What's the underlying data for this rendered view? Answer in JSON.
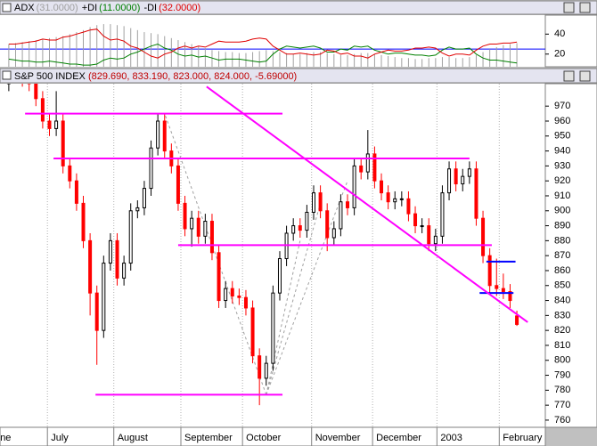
{
  "chart_data": [
    {
      "type": "indicator",
      "title_parts": [
        {
          "name": "ADX",
          "value_label": "(31.0000)"
        },
        {
          "name": "+DI",
          "value_label": "(11.0000)"
        },
        {
          "name": "-DI",
          "value_label": "(32.0000)"
        }
      ],
      "series": [
        {
          "name": "ADX",
          "color": "#a0a0a0",
          "style": "histogram",
          "values": [
            30,
            31,
            32,
            33,
            34,
            35,
            36,
            37,
            38,
            40,
            42,
            44,
            47,
            49,
            50,
            50,
            49,
            48,
            46,
            44,
            42,
            41,
            40,
            38,
            36,
            34,
            32,
            30,
            28,
            26,
            24,
            23,
            22,
            22,
            21,
            21,
            22,
            23,
            24,
            23,
            22,
            21,
            20,
            20,
            21,
            22,
            22,
            21,
            20,
            19,
            19,
            20,
            21,
            21,
            20,
            19,
            18,
            17,
            16,
            16,
            15,
            15,
            16,
            16,
            17,
            17,
            16,
            16,
            17,
            19,
            22,
            25,
            27,
            29,
            30,
            31
          ]
        },
        {
          "name": "+DI",
          "color": "#008000",
          "style": "line",
          "values": [
            15,
            14,
            13,
            13,
            12,
            12,
            13,
            12,
            11,
            10,
            10,
            9,
            9,
            10,
            14,
            16,
            15,
            16,
            20,
            22,
            25,
            28,
            30,
            26,
            24,
            20,
            18,
            19,
            17,
            18,
            16,
            14,
            15,
            15,
            15,
            14,
            13,
            12,
            13,
            20,
            25,
            28,
            27,
            26,
            27,
            28,
            26,
            22,
            22,
            25,
            24,
            28,
            27,
            28,
            24,
            22,
            20,
            21,
            21,
            20,
            19,
            19,
            18,
            19,
            24,
            27,
            25,
            25,
            26,
            20,
            16,
            14,
            14,
            13,
            12,
            11
          ]
        },
        {
          "name": "-DI",
          "color": "#e00000",
          "style": "line",
          "values": [
            30,
            30,
            31,
            32,
            33,
            35,
            34,
            34,
            37,
            38,
            40,
            42,
            44,
            45,
            38,
            34,
            35,
            33,
            28,
            26,
            22,
            18,
            16,
            20,
            22,
            26,
            28,
            26,
            28,
            27,
            30,
            33,
            32,
            32,
            32,
            33,
            35,
            36,
            35,
            28,
            24,
            20,
            20,
            21,
            20,
            19,
            20,
            24,
            23,
            20,
            21,
            18,
            18,
            16,
            20,
            22,
            24,
            23,
            23,
            24,
            26,
            26,
            27,
            26,
            21,
            18,
            20,
            20,
            19,
            24,
            28,
            30,
            30,
            31,
            31,
            32
          ]
        }
      ],
      "hline": {
        "value": 25,
        "color": "#0000ff"
      },
      "xlim": [
        -1.3,
        79.2
      ],
      "ylim": [
        7.3,
        59
      ],
      "yticks": [
        20,
        40
      ]
    },
    {
      "type": "candlestick",
      "title": "S&P 500 INDEX",
      "quote_label": "(829.690, 833.190, 823.000, 824.000, -5.69000)",
      "up_color": "#000000",
      "down_color": "#ff0000",
      "open": [
        985,
        990,
        992,
        988,
        985,
        975,
        960,
        955,
        960,
        930,
        920,
        905,
        880,
        845,
        820,
        865,
        880,
        855,
        865,
        900,
        902,
        915,
        942,
        960,
        940,
        930,
        905,
        888,
        895,
        883,
        893,
        872,
        840,
        848,
        843,
        842,
        835,
        803,
        788,
        798,
        845,
        868,
        885,
        890,
        887,
        899,
        912,
        900,
        882,
        888,
        906,
        902,
        930,
        926,
        938,
        920,
        912,
        906,
        908,
        908,
        898,
        890,
        890,
        878,
        883,
        912,
        928,
        918,
        923,
        928,
        895,
        870,
        850,
        848,
        846,
        829.69
      ],
      "high": [
        995,
        997,
        997,
        993,
        990,
        980,
        965,
        980,
        965,
        935,
        925,
        910,
        885,
        850,
        870,
        885,
        885,
        870,
        905,
        907,
        920,
        947,
        965,
        965,
        945,
        935,
        910,
        900,
        900,
        898,
        898,
        877,
        853,
        853,
        848,
        847,
        840,
        808,
        803,
        850,
        873,
        890,
        895,
        895,
        904,
        917,
        917,
        905,
        893,
        911,
        911,
        935,
        935,
        954,
        943,
        925,
        917,
        913,
        913,
        913,
        903,
        895,
        895,
        888,
        917,
        933,
        933,
        928,
        933,
        933,
        900,
        875,
        868,
        858,
        851,
        833.19
      ],
      "low": [
        980,
        985,
        983,
        980,
        970,
        955,
        950,
        950,
        925,
        915,
        900,
        875,
        830,
        797,
        815,
        860,
        850,
        850,
        860,
        895,
        897,
        910,
        937,
        935,
        925,
        900,
        883,
        876,
        878,
        878,
        867,
        835,
        835,
        838,
        837,
        830,
        798,
        770,
        783,
        793,
        840,
        863,
        880,
        882,
        882,
        894,
        895,
        873,
        877,
        883,
        897,
        897,
        921,
        921,
        915,
        907,
        901,
        901,
        903,
        893,
        885,
        885,
        873,
        873,
        878,
        907,
        913,
        913,
        918,
        890,
        865,
        845,
        843,
        841,
        835,
        823
      ],
      "close": [
        990,
        992,
        988,
        985,
        975,
        960,
        955,
        960,
        930,
        920,
        905,
        880,
        845,
        820,
        865,
        880,
        855,
        865,
        900,
        902,
        915,
        942,
        960,
        940,
        930,
        905,
        888,
        895,
        883,
        893,
        872,
        840,
        848,
        843,
        842,
        835,
        803,
        788,
        798,
        845,
        868,
        885,
        890,
        887,
        899,
        912,
        900,
        882,
        888,
        906,
        902,
        930,
        926,
        938,
        920,
        912,
        906,
        908,
        908,
        898,
        890,
        890,
        878,
        883,
        912,
        928,
        918,
        923,
        928,
        895,
        870,
        850,
        848,
        846,
        840,
        824
      ],
      "levels": [
        {
          "value": 965,
          "start": 2.4,
          "end": 40.4,
          "color": "#ff00ff"
        },
        {
          "value": 935,
          "start": 6.6,
          "end": 68,
          "color": "#ff00ff"
        },
        {
          "value": 877,
          "start": 25,
          "end": 71.3,
          "color": "#ff00ff"
        },
        {
          "value": 777,
          "start": 12.8,
          "end": 40.4,
          "color": "#ff00ff"
        },
        {
          "value": 866,
          "start": 70.5,
          "end": 74.8,
          "color": "#0000ff"
        },
        {
          "value": 845,
          "start": 69.5,
          "end": 74.5,
          "color": "#0000ff"
        }
      ],
      "trendline": {
        "start": [
          29.2,
          983
        ],
        "end": [
          76.6,
          825.5
        ],
        "color": "#ff00ff"
      },
      "fan_lines": [
        {
          "start": [
            38,
            777
          ],
          "end": [
            23,
            965
          ]
        },
        {
          "start": [
            38,
            777
          ],
          "end": [
            50,
            920
          ]
        },
        {
          "start": [
            38,
            777
          ],
          "end": [
            46,
            905
          ]
        },
        {
          "start": [
            38,
            777
          ],
          "end": [
            43,
            880
          ]
        }
      ],
      "xlim": [
        -1.3,
        79.2
      ],
      "ylim": [
        755.2,
        985
      ],
      "xticks": [
        {
          "value": -1.8,
          "label": "ne"
        },
        {
          "value": 5.7,
          "label": "July"
        },
        {
          "value": 15.5,
          "label": "August"
        },
        {
          "value": 25.4,
          "label": "September"
        },
        {
          "value": 34.5,
          "label": "October"
        },
        {
          "value": 44.7,
          "label": "November"
        },
        {
          "value": 53.7,
          "label": "December"
        },
        {
          "value": 63.2,
          "label": "2003"
        },
        {
          "value": 72.4,
          "label": "February"
        }
      ],
      "yticks": [
        760,
        770,
        780,
        790,
        800,
        810,
        820,
        830,
        840,
        850,
        860,
        870,
        880,
        890,
        900,
        910,
        920,
        930,
        940,
        950,
        960,
        970
      ],
      "grid": true
    }
  ]
}
